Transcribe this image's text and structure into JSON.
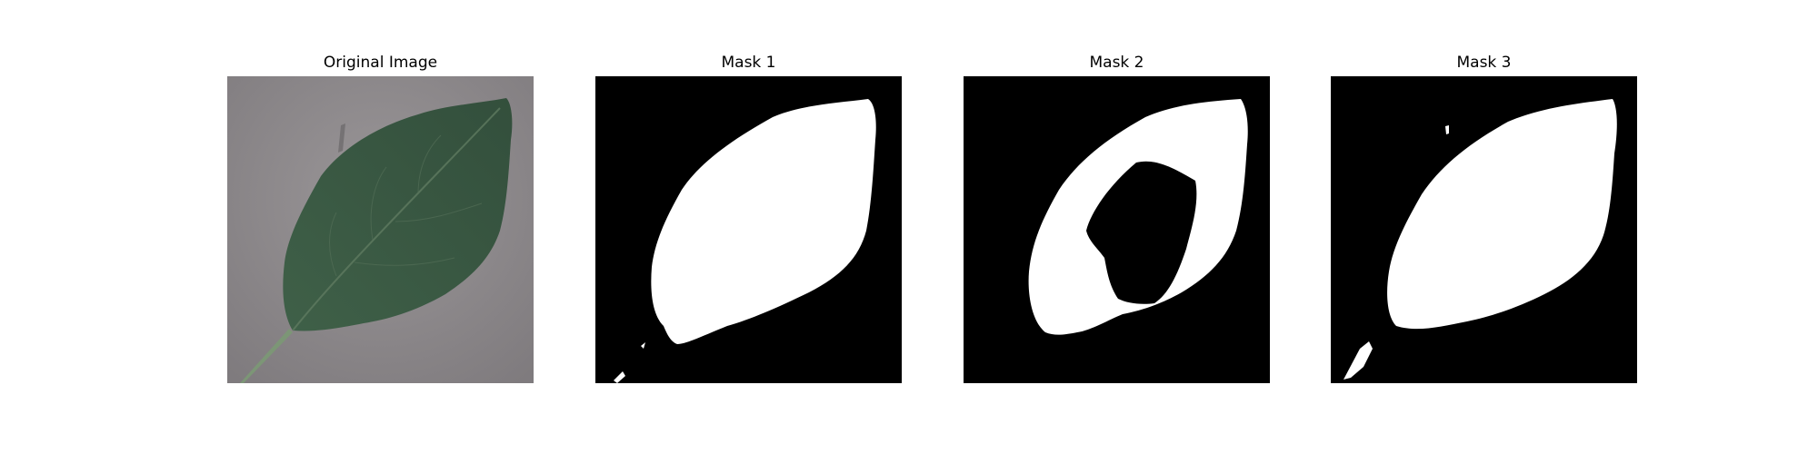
{
  "panels": [
    {
      "title": "Original Image",
      "kind": "photo"
    },
    {
      "title": "Mask 1",
      "kind": "mask"
    },
    {
      "title": "Mask 2",
      "kind": "mask"
    },
    {
      "title": "Mask 3",
      "kind": "mask"
    }
  ],
  "colors": {
    "background": "#ffffff",
    "mask_background": "#000000",
    "mask_foreground": "#ffffff",
    "paper": "#8e8a8d",
    "leaf": "#3e5b45",
    "stem": "#6f8a6c"
  }
}
